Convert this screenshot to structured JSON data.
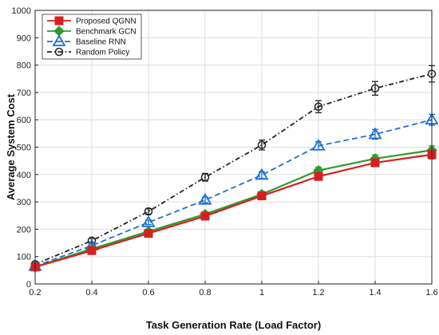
{
  "chart_data": {
    "type": "line",
    "xlabel": "Task Generation Rate (Load Factor)",
    "ylabel": "Average System Cost",
    "xlim": [
      0.2,
      1.6
    ],
    "ylim": [
      0,
      1000
    ],
    "x": [
      0.2,
      0.4,
      0.6,
      0.8,
      1.0,
      1.2,
      1.4,
      1.6
    ],
    "x_tick_labels": [
      "0.2",
      "0.4",
      "0.6",
      "0.8",
      "1",
      "1.2",
      "1.4",
      "1.6"
    ],
    "y_ticks": [
      0,
      100,
      200,
      300,
      400,
      500,
      600,
      700,
      800,
      900,
      1000
    ],
    "y_tick_labels": [
      "0",
      "100",
      "200",
      "300",
      "400",
      "500",
      "600",
      "700",
      "800",
      "900",
      "1000"
    ],
    "grid": true,
    "legend_position": "top-left",
    "series": [
      {
        "name": "Proposed QGNN",
        "color": "#d62020",
        "line_style": "solid",
        "marker": "square",
        "values": [
          62,
          122,
          185,
          248,
          322,
          393,
          443,
          473
        ],
        "error": [
          4,
          5,
          6,
          8,
          10,
          12,
          14,
          16
        ]
      },
      {
        "name": "Benchmark GCN",
        "color": "#2e9b2e",
        "line_style": "solid",
        "marker": "diamond",
        "values": [
          62,
          128,
          192,
          255,
          328,
          415,
          458,
          489
        ],
        "error": [
          4,
          5,
          6,
          8,
          10,
          12,
          14,
          16
        ]
      },
      {
        "name": "Baseline RNN",
        "color": "#1f6fd6",
        "line_style": "dashed",
        "marker": "triangle",
        "values": [
          65,
          140,
          225,
          307,
          398,
          505,
          547,
          600
        ],
        "error": [
          4,
          6,
          8,
          10,
          12,
          15,
          18,
          20
        ]
      },
      {
        "name": "Random Policy",
        "color": "#222222",
        "line_style": "dashdot",
        "marker": "circle",
        "values": [
          72,
          158,
          265,
          390,
          508,
          648,
          715,
          768
        ],
        "error": [
          5,
          8,
          10,
          14,
          18,
          22,
          25,
          30
        ]
      }
    ]
  }
}
